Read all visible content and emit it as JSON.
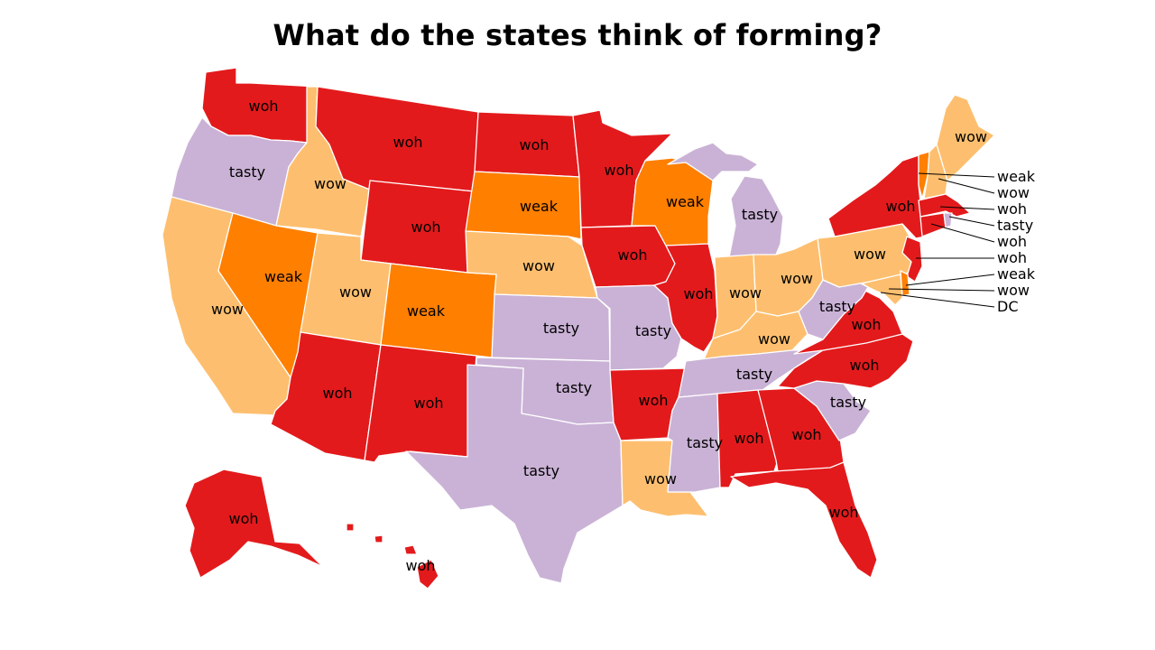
{
  "title": "What do the states think of forming?",
  "colors": {
    "woh": "#e31a1c",
    "weak": "#ff7f00",
    "wow": "#fdbf6f",
    "tasty": "#cab2d6"
  },
  "states": {
    "WA": {
      "label": "woh",
      "category": "woh"
    },
    "OR": {
      "label": "tasty",
      "category": "tasty"
    },
    "CA": {
      "label": "wow",
      "category": "wow"
    },
    "ID": {
      "label": "wow",
      "category": "wow"
    },
    "NV": {
      "label": "weak",
      "category": "weak"
    },
    "MT": {
      "label": "woh",
      "category": "woh"
    },
    "WY": {
      "label": "woh",
      "category": "woh"
    },
    "UT": {
      "label": "wow",
      "category": "wow"
    },
    "AZ": {
      "label": "woh",
      "category": "woh"
    },
    "CO": {
      "label": "weak",
      "category": "weak"
    },
    "NM": {
      "label": "woh",
      "category": "woh"
    },
    "ND": {
      "label": "woh",
      "category": "woh"
    },
    "SD": {
      "label": "weak",
      "category": "weak"
    },
    "NE": {
      "label": "wow",
      "category": "wow"
    },
    "KS": {
      "label": "tasty",
      "category": "tasty"
    },
    "OK": {
      "label": "tasty",
      "category": "tasty"
    },
    "TX": {
      "label": "tasty",
      "category": "tasty"
    },
    "MN": {
      "label": "woh",
      "category": "woh"
    },
    "IA": {
      "label": "woh",
      "category": "woh"
    },
    "MO": {
      "label": "tasty",
      "category": "tasty"
    },
    "AR": {
      "label": "woh",
      "category": "woh"
    },
    "LA": {
      "label": "wow",
      "category": "wow"
    },
    "WI": {
      "label": "weak",
      "category": "weak"
    },
    "IL": {
      "label": "woh",
      "category": "woh"
    },
    "MI": {
      "label": "tasty",
      "category": "tasty"
    },
    "IN": {
      "label": "wow",
      "category": "wow"
    },
    "OH": {
      "label": "wow",
      "category": "wow"
    },
    "KY": {
      "label": "wow",
      "category": "wow"
    },
    "TN": {
      "label": "tasty",
      "category": "tasty"
    },
    "MS": {
      "label": "tasty",
      "category": "tasty"
    },
    "AL": {
      "label": "woh",
      "category": "woh"
    },
    "GA": {
      "label": "woh",
      "category": "woh"
    },
    "FL": {
      "label": "woh",
      "category": "woh"
    },
    "SC": {
      "label": "tasty",
      "category": "tasty"
    },
    "NC": {
      "label": "woh",
      "category": "woh"
    },
    "VA": {
      "label": "woh",
      "category": "woh"
    },
    "WV": {
      "label": "tasty",
      "category": "tasty"
    },
    "PA": {
      "label": "wow",
      "category": "wow"
    },
    "NY": {
      "label": "woh",
      "category": "woh"
    },
    "ME": {
      "label": "wow",
      "category": "wow"
    },
    "AK": {
      "label": "woh",
      "category": "woh"
    },
    "HI": {
      "label": "woh",
      "category": "woh"
    }
  },
  "callouts": {
    "VT": {
      "label": "weak",
      "category": "weak"
    },
    "NH": {
      "label": "wow",
      "category": "wow"
    },
    "MA": {
      "label": "woh",
      "category": "woh"
    },
    "RI": {
      "label": "tasty",
      "category": "tasty"
    },
    "CT": {
      "label": "woh",
      "category": "woh"
    },
    "NJ": {
      "label": "woh",
      "category": "woh"
    },
    "DE": {
      "label": "weak",
      "category": "weak"
    },
    "MD": {
      "label": "wow",
      "category": "wow"
    },
    "DC": {
      "label": "DC",
      "category": "wow"
    }
  }
}
